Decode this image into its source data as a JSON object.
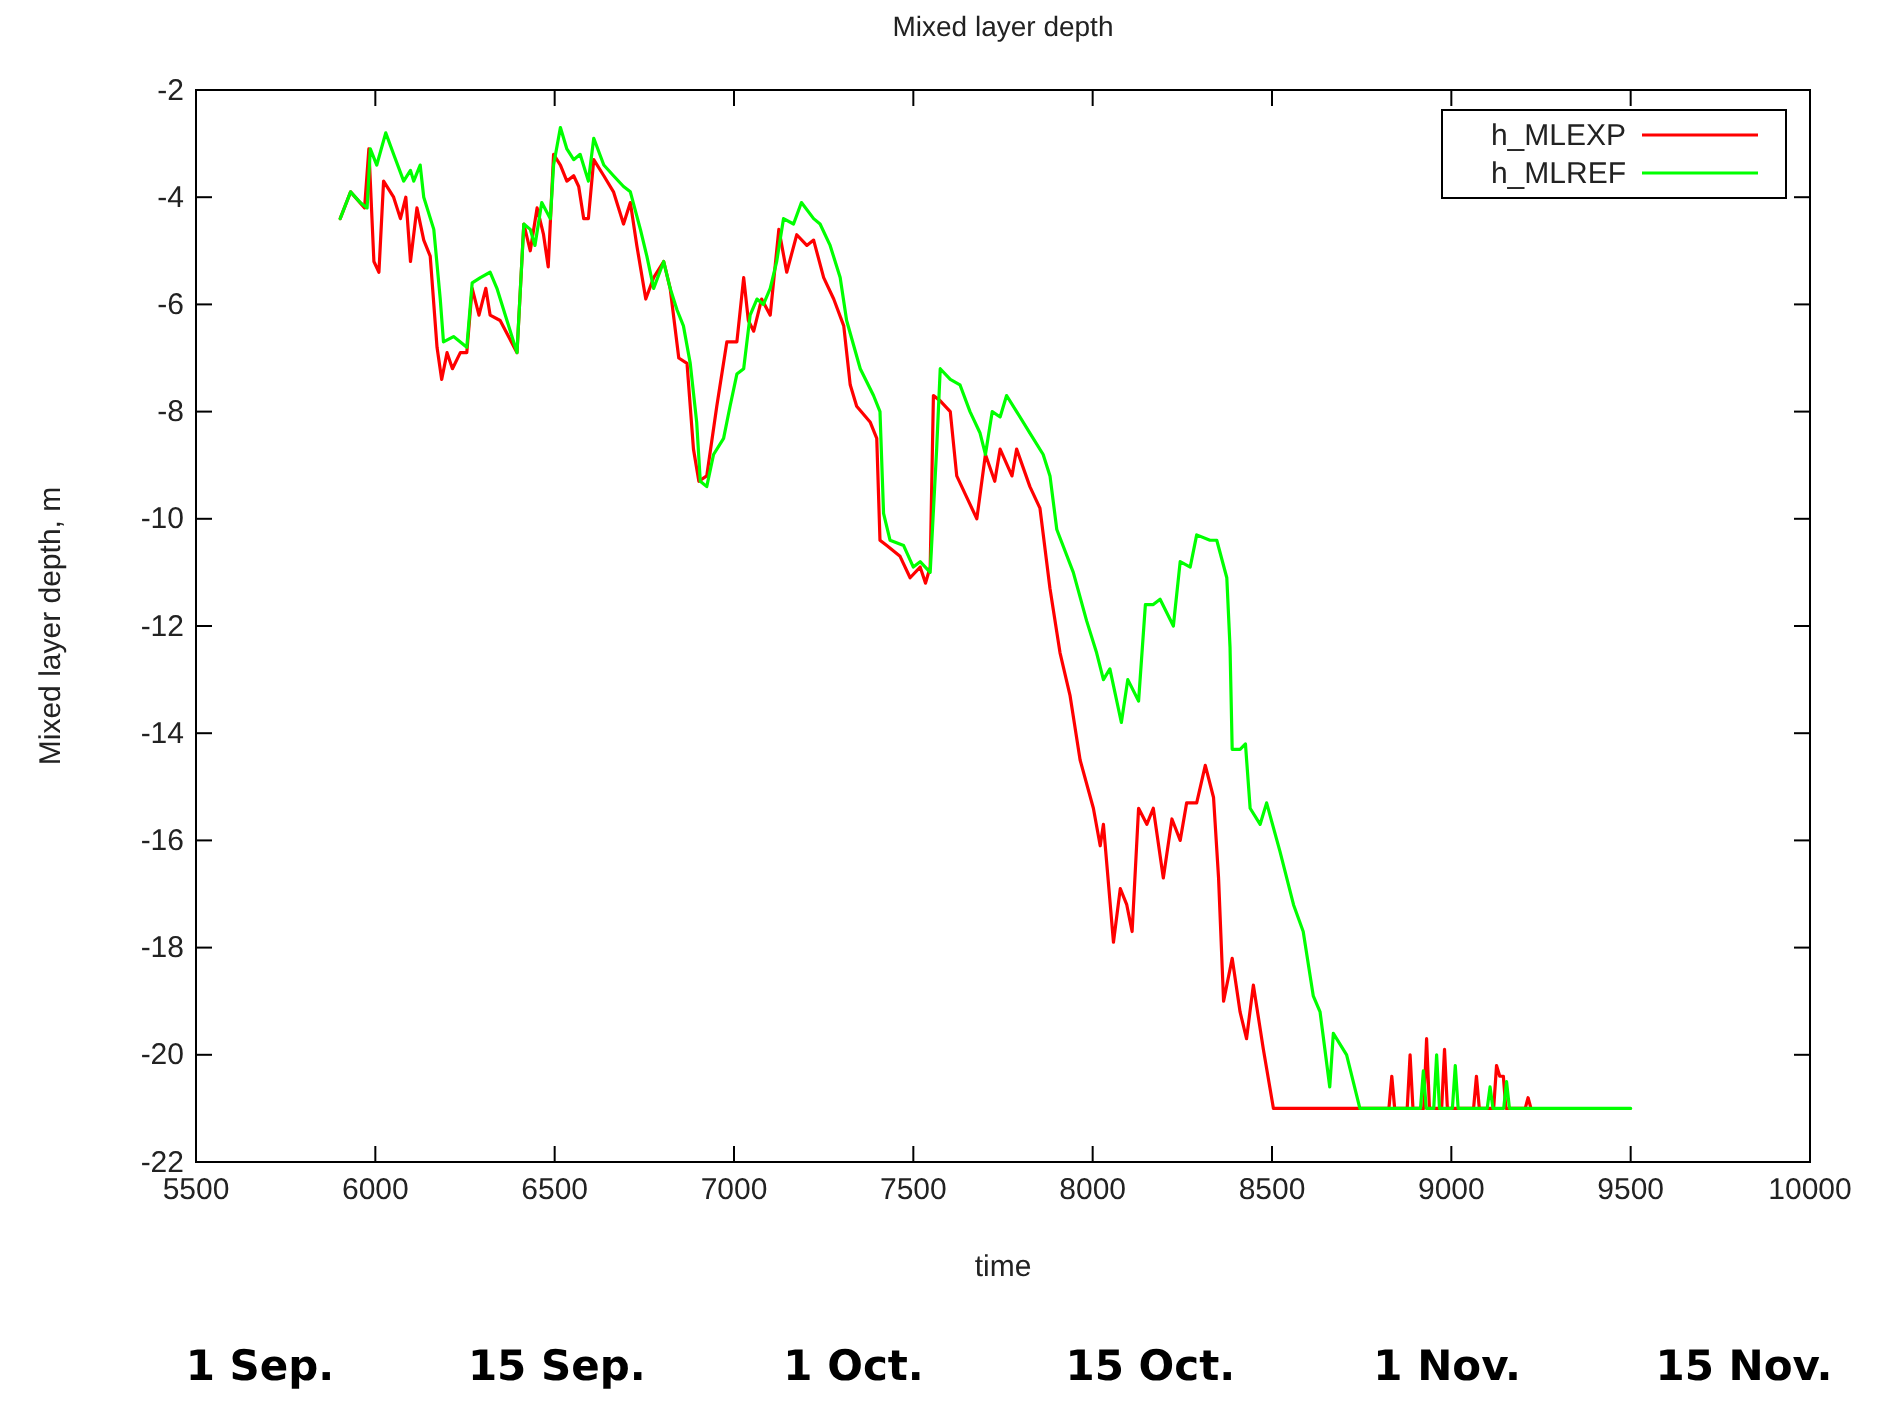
{
  "chart_data": {
    "type": "line",
    "title": "Mixed layer depth",
    "xlabel": "time",
    "ylabel": "Mixed layer depth, m",
    "xlim": [
      5500,
      10000
    ],
    "xticks": [
      5500,
      6000,
      6500,
      7000,
      7500,
      8000,
      8500,
      9000,
      9500,
      10000
    ],
    "ylim": [
      -22,
      -2
    ],
    "yticks": [
      -22,
      -20,
      -18,
      -16,
      -14,
      -12,
      -10,
      -8,
      -6,
      -4,
      -2
    ],
    "legend": "top right",
    "series": [
      {
        "name": "h_MLEXP",
        "color": "#ff0000",
        "x": [
          5902,
          5931,
          5970,
          5982,
          5996,
          6010,
          6023,
          6051,
          6070,
          6085,
          6098,
          6116,
          6135,
          6153,
          6172,
          6185,
          6200,
          6215,
          6237,
          6255,
          6270,
          6289,
          6308,
          6320,
          6348,
          6395,
          6414,
          6432,
          6451,
          6469,
          6482,
          6497,
          6516,
          6534,
          6553,
          6567,
          6581,
          6594,
          6609,
          6637,
          6664,
          6692,
          6711,
          6729,
          6754,
          6776,
          6804,
          6822,
          6846,
          6869,
          6887,
          6902,
          6924,
          6952,
          6980,
          7008,
          7027,
          7040,
          7055,
          7077,
          7101,
          7125,
          7147,
          7175,
          7203,
          7222,
          7250,
          7278,
          7306,
          7324,
          7342,
          7380,
          7398,
          7407,
          7426,
          7463,
          7491,
          7519,
          7534,
          7547,
          7556,
          7575,
          7603,
          7621,
          7649,
          7677,
          7701,
          7727,
          7742,
          7775,
          7788,
          7825,
          7853,
          7881,
          7909,
          7937,
          7965,
          8002,
          8021,
          8030,
          8058,
          8077,
          8095,
          8110,
          8128,
          8151,
          8169,
          8197,
          8221,
          8244,
          8262,
          8290,
          8314,
          8337,
          8351,
          8365,
          8389,
          8411,
          8429,
          8448,
          8476,
          8504,
          8826,
          8834,
          8842,
          8877,
          8885,
          8893,
          8923,
          8931,
          8939,
          8973,
          8981,
          8989,
          9062,
          9070,
          9078,
          9118,
          9126,
          9135,
          9145,
          9152,
          9206,
          9214,
          9222
        ],
        "values": [
          -4.4,
          -3.9,
          -4.2,
          -3.1,
          -5.2,
          -5.4,
          -3.7,
          -4.0,
          -4.4,
          -4.0,
          -5.2,
          -4.2,
          -4.8,
          -5.1,
          -6.8,
          -7.4,
          -6.9,
          -7.2,
          -6.9,
          -6.9,
          -5.7,
          -6.2,
          -5.7,
          -6.2,
          -6.3,
          -6.9,
          -4.5,
          -5.0,
          -4.2,
          -4.7,
          -5.3,
          -3.2,
          -3.4,
          -3.7,
          -3.6,
          -3.8,
          -4.4,
          -4.4,
          -3.3,
          -3.6,
          -3.9,
          -4.5,
          -4.1,
          -4.9,
          -5.9,
          -5.5,
          -5.2,
          -5.7,
          -7.0,
          -7.1,
          -8.7,
          -9.3,
          -9.2,
          -7.9,
          -6.7,
          -6.7,
          -5.5,
          -6.3,
          -6.5,
          -5.9,
          -6.2,
          -4.6,
          -5.4,
          -4.7,
          -4.9,
          -4.8,
          -5.5,
          -5.9,
          -6.4,
          -7.5,
          -7.9,
          -8.2,
          -8.5,
          -10.4,
          -10.5,
          -10.7,
          -11.1,
          -10.9,
          -11.2,
          -10.9,
          -7.7,
          -7.8,
          -8.0,
          -9.2,
          -9.6,
          -10.0,
          -8.8,
          -9.3,
          -8.7,
          -9.2,
          -8.7,
          -9.4,
          -9.8,
          -11.3,
          -12.5,
          -13.3,
          -14.5,
          -15.4,
          -16.1,
          -15.7,
          -17.9,
          -16.9,
          -17.2,
          -17.7,
          -15.4,
          -15.7,
          -15.4,
          -16.7,
          -15.6,
          -16.0,
          -15.3,
          -15.3,
          -14.6,
          -15.2,
          -16.7,
          -19.0,
          -18.2,
          -19.2,
          -19.7,
          -18.7,
          -19.9,
          -21.0,
          -21.0,
          -20.4,
          -21.0,
          -21.0,
          -20.0,
          -21.0,
          -21.0,
          -19.7,
          -21.0,
          -21.0,
          -19.9,
          -21.0,
          -21.0,
          -20.4,
          -21.0,
          -21.0,
          -20.2,
          -20.4,
          -20.4,
          -21.0,
          -21.0,
          -20.8,
          -21.0
        ]
      },
      {
        "name": "h_MLREF",
        "color": "#00ff00",
        "x": [
          5902,
          5931,
          5958,
          5977,
          5986,
          6004,
          6029,
          6051,
          6079,
          6098,
          6107,
          6125,
          6135,
          6163,
          6181,
          6190,
          6218,
          6237,
          6255,
          6270,
          6293,
          6320,
          6339,
          6367,
          6395,
          6414,
          6432,
          6445,
          6464,
          6488,
          6497,
          6516,
          6534,
          6553,
          6571,
          6594,
          6609,
          6637,
          6664,
          6692,
          6711,
          6739,
          6757,
          6776,
          6804,
          6822,
          6841,
          6859,
          6878,
          6896,
          6906,
          6924,
          6943,
          6971,
          6989,
          7008,
          7027,
          7045,
          7064,
          7082,
          7101,
          7119,
          7138,
          7166,
          7188,
          7222,
          7240,
          7268,
          7296,
          7314,
          7352,
          7389,
          7407,
          7417,
          7435,
          7473,
          7500,
          7519,
          7547,
          7565,
          7575,
          7603,
          7630,
          7658,
          7686,
          7701,
          7720,
          7742,
          7760,
          7788,
          7825,
          7862,
          7881,
          7900,
          7946,
          7983,
          8011,
          8030,
          8048,
          8080,
          8098,
          8128,
          8147,
          8169,
          8188,
          8225,
          8244,
          8272,
          8290,
          8327,
          8346,
          8374,
          8383,
          8389,
          8411,
          8426,
          8439,
          8467,
          8485,
          8522,
          8560,
          8587,
          8615,
          8634,
          8661,
          8671,
          8708,
          8745,
          8914,
          8922,
          8930,
          8951,
          8959,
          8967,
          9003,
          9011,
          9019,
          9100,
          9108,
          9116,
          9146,
          9154,
          9162,
          9500
        ],
        "values": [
          -4.4,
          -3.9,
          -4.1,
          -4.2,
          -3.1,
          -3.4,
          -2.8,
          -3.2,
          -3.7,
          -3.5,
          -3.7,
          -3.4,
          -4.0,
          -4.6,
          -5.9,
          -6.7,
          -6.6,
          -6.7,
          -6.8,
          -5.6,
          -5.5,
          -5.4,
          -5.7,
          -6.3,
          -6.9,
          -4.5,
          -4.6,
          -4.9,
          -4.1,
          -4.4,
          -3.4,
          -2.7,
          -3.1,
          -3.3,
          -3.2,
          -3.7,
          -2.9,
          -3.4,
          -3.6,
          -3.8,
          -3.9,
          -4.6,
          -5.1,
          -5.7,
          -5.2,
          -5.7,
          -6.1,
          -6.4,
          -7.1,
          -8.2,
          -9.3,
          -9.4,
          -8.8,
          -8.5,
          -7.9,
          -7.3,
          -7.2,
          -6.2,
          -5.9,
          -6.0,
          -5.7,
          -5.2,
          -4.4,
          -4.5,
          -4.1,
          -4.4,
          -4.5,
          -4.9,
          -5.5,
          -6.3,
          -7.2,
          -7.7,
          -8.0,
          -9.9,
          -10.4,
          -10.5,
          -10.9,
          -10.8,
          -11.0,
          -8.7,
          -7.2,
          -7.4,
          -7.5,
          -8.0,
          -8.4,
          -8.8,
          -8.0,
          -8.1,
          -7.7,
          -8.0,
          -8.4,
          -8.8,
          -9.2,
          -10.2,
          -11.0,
          -11.9,
          -12.5,
          -13.0,
          -12.8,
          -13.8,
          -13.0,
          -13.4,
          -11.6,
          -11.6,
          -11.5,
          -12.0,
          -10.8,
          -10.9,
          -10.3,
          -10.4,
          -10.4,
          -11.1,
          -12.4,
          -14.3,
          -14.3,
          -14.2,
          -15.4,
          -15.7,
          -15.3,
          -16.2,
          -17.2,
          -17.7,
          -18.9,
          -19.2,
          -20.6,
          -19.6,
          -20.0,
          -21.0,
          -21.0,
          -20.3,
          -21.0,
          -21.0,
          -20.0,
          -21.0,
          -21.0,
          -20.2,
          -21.0,
          -21.0,
          -20.6,
          -21.0,
          -21.0,
          -20.5,
          -21.0,
          -21.0
        ]
      }
    ],
    "annotations": [
      "1 Sep.",
      "15 Sep.",
      "1 Oct.",
      "15 Oct.",
      "1 Nov.",
      "15 Nov."
    ]
  }
}
